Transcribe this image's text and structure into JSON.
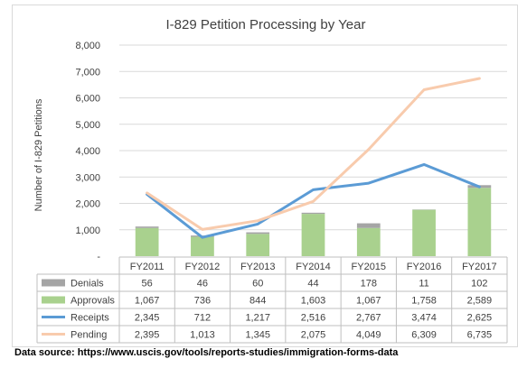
{
  "chart_data": {
    "type": "bar",
    "title": "I-829 Petition Processing by Year",
    "ylabel": "Number of I-829 Petitions",
    "xlabel": "",
    "ylim": [
      0,
      8000
    ],
    "y_ticks": [
      "-",
      "1,000",
      "2,000",
      "3,000",
      "4,000",
      "5,000",
      "6,000",
      "7,000",
      "8,000"
    ],
    "grid": true,
    "categories": [
      "FY2011",
      "FY2012",
      "FY2013",
      "FY2014",
      "FY2015",
      "FY2016",
      "FY2017"
    ],
    "series": [
      {
        "name": "Denials",
        "kind": "stacked-bar",
        "color": "#a5a5a5",
        "values": [
          56,
          46,
          60,
          44,
          178,
          11,
          102
        ],
        "labels": [
          "56",
          "46",
          "60",
          "44",
          "178",
          "11",
          "102"
        ]
      },
      {
        "name": "Approvals",
        "kind": "stacked-bar",
        "color": "#a9d18e",
        "values": [
          1067,
          736,
          844,
          1603,
          1067,
          1758,
          2589
        ],
        "labels": [
          "1,067",
          "736",
          "844",
          "1,603",
          "1,067",
          "1,758",
          "2,589"
        ]
      },
      {
        "name": "Receipts",
        "kind": "line",
        "color": "#5b9bd5",
        "values": [
          2345,
          712,
          1217,
          2516,
          2767,
          3474,
          2625
        ],
        "labels": [
          "2,345",
          "712",
          "1,217",
          "2,516",
          "2,767",
          "3,474",
          "2,625"
        ]
      },
      {
        "name": "Pending",
        "kind": "line",
        "color": "#f8cbad",
        "values": [
          2395,
          1013,
          1345,
          2075,
          4049,
          6309,
          6735
        ],
        "labels": [
          "2,395",
          "1,013",
          "1,345",
          "2,075",
          "4,049",
          "6,309",
          "6,735"
        ]
      }
    ],
    "legend": "data-table-below"
  },
  "source_note": "Data source: https://www.uscis.gov/tools/reports-studies/immigration-forms-data"
}
